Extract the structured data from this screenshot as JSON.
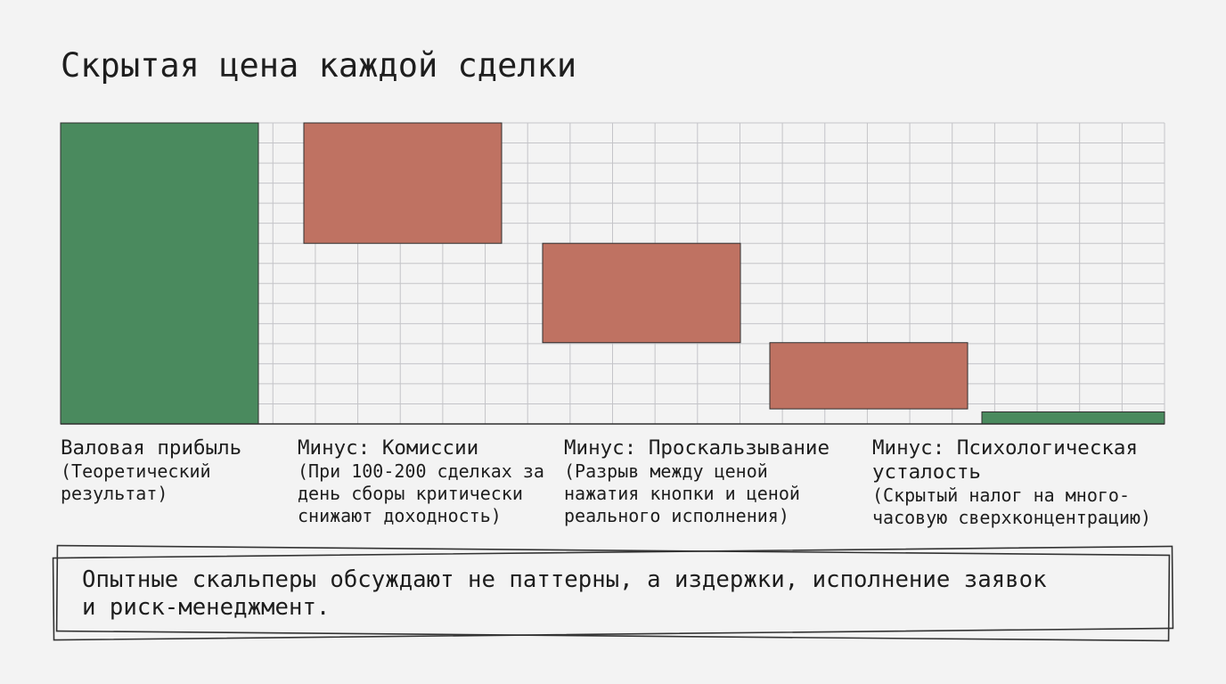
{
  "title": "Скрытая цена каждой сделки",
  "chart_data": {
    "type": "waterfall",
    "categories": [
      "Валовая прибыль",
      "Минус: Комиссии",
      "Минус: Проскальзывание",
      "Минус: Психологическая усталость",
      null
    ],
    "descriptions": [
      "(Теоретический результат)",
      "(При 100-200 сделках за день сборы критически снижают доходность)",
      "(Разрыв между ценой нажатия кнопки и ценой реального исполнения)",
      "(Скрытый налог на много-часовую сверхконцентрацию)",
      null
    ],
    "values": [
      100,
      -40,
      -33,
      -22,
      4
    ],
    "colors": [
      "#4a8a5e",
      "#bf7262",
      "#bf7262",
      "#bf7262",
      "#4a8a5e"
    ],
    "ylim": [
      0,
      100
    ],
    "grid": true
  },
  "note": "Опытные скальперы обсуждают не паттерны, а издержки, исполнение заявок и риск-менеджмент."
}
